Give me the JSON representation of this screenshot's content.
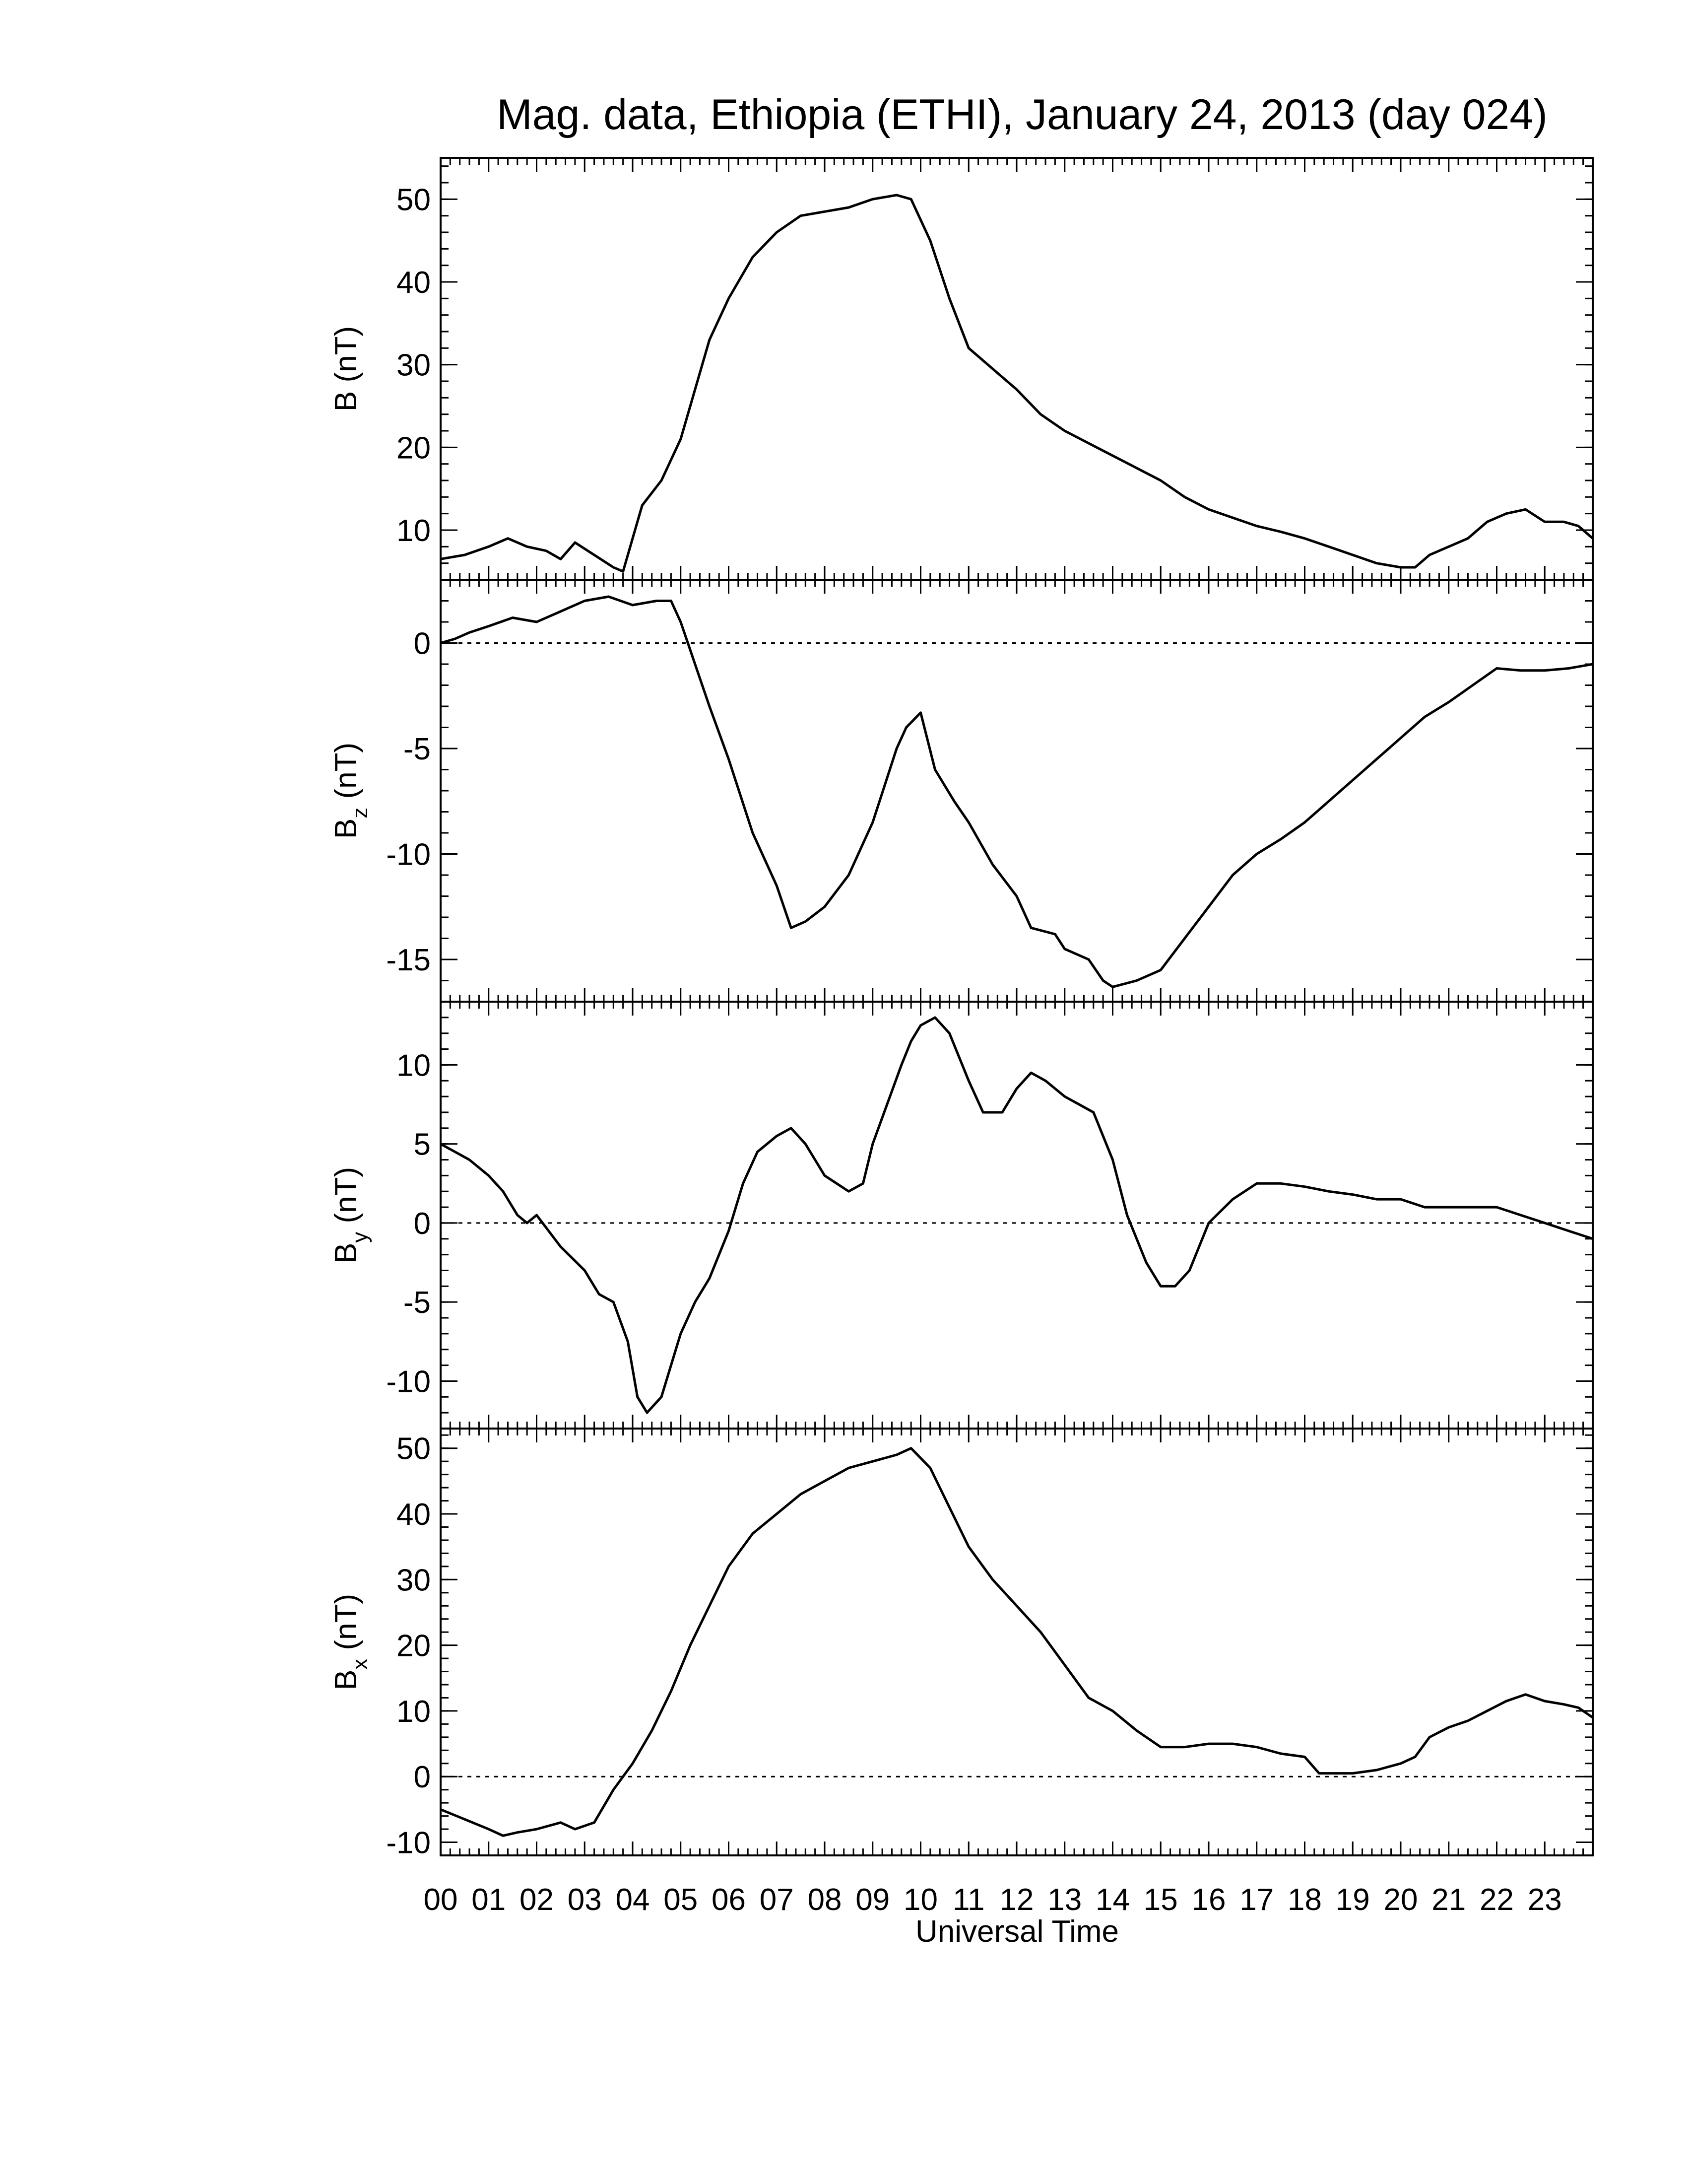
{
  "chart_data": {
    "type": "line",
    "title": "Mag. data, Ethiopia (ETHI), January 24, 2013 (day 024)",
    "xlabel": "Universal Time",
    "x_tick_labels": [
      "00",
      "01",
      "02",
      "03",
      "04",
      "05",
      "06",
      "07",
      "08",
      "09",
      "10",
      "11",
      "12",
      "13",
      "14",
      "15",
      "16",
      "17",
      "18",
      "19",
      "20",
      "21",
      "22",
      "23"
    ],
    "xlim": [
      0,
      24
    ],
    "line_color": "#000000",
    "panels": [
      {
        "id": "B",
        "ylabel_main": "B (nT)",
        "ylabel_sub": "",
        "ylabel_tail": "",
        "ylim": [
          4,
          55
        ],
        "yticks": [
          10,
          20,
          30,
          40,
          50
        ],
        "zero_line": false,
        "x": [
          0,
          0.5,
          1.0,
          1.4,
          1.8,
          2.2,
          2.5,
          2.8,
          3.2,
          3.6,
          3.8,
          4.2,
          4.6,
          5.0,
          5.3,
          5.6,
          6.0,
          6.5,
          7.0,
          7.5,
          8.0,
          8.5,
          9.0,
          9.5,
          9.8,
          10.2,
          10.6,
          11.0,
          11.5,
          12.0,
          12.5,
          13.0,
          13.5,
          14.0,
          14.5,
          15.0,
          15.5,
          16.0,
          16.5,
          17.0,
          17.5,
          18.0,
          18.5,
          19.0,
          19.5,
          20.0,
          20.3,
          20.6,
          21.0,
          21.4,
          21.8,
          22.2,
          22.6,
          23.0,
          23.4,
          23.7,
          24.0
        ],
        "y": [
          6.5,
          7.0,
          8.0,
          9.0,
          8.0,
          7.5,
          6.5,
          8.5,
          7.0,
          5.5,
          5.0,
          13.0,
          16.0,
          21.0,
          27.0,
          33.0,
          38.0,
          43.0,
          46.0,
          48.0,
          48.5,
          49.0,
          50.0,
          50.5,
          50.0,
          45.0,
          38.0,
          32.0,
          29.5,
          27.0,
          24.0,
          22.0,
          20.5,
          19.0,
          17.5,
          16.0,
          14.0,
          12.5,
          11.5,
          10.5,
          9.8,
          9.0,
          8.0,
          7.0,
          6.0,
          5.5,
          5.5,
          7.0,
          8.0,
          9.0,
          11.0,
          12.0,
          12.5,
          11.0,
          11.0,
          10.5,
          9.0
        ]
      },
      {
        "id": "Bz",
        "ylabel_main": "B",
        "ylabel_sub": "z",
        "ylabel_tail": " (nT)",
        "ylim": [
          -17,
          3
        ],
        "yticks": [
          -15,
          -10,
          -5,
          0
        ],
        "zero_line": true,
        "x": [
          0,
          0.3,
          0.6,
          1.0,
          1.5,
          2.0,
          2.5,
          3.0,
          3.5,
          4.0,
          4.5,
          4.8,
          5.0,
          5.3,
          5.6,
          6.0,
          6.5,
          7.0,
          7.3,
          7.6,
          8.0,
          8.5,
          9.0,
          9.5,
          9.7,
          10.0,
          10.3,
          10.7,
          11.0,
          11.5,
          12.0,
          12.3,
          12.8,
          13.0,
          13.5,
          13.8,
          14.0,
          14.5,
          15.0,
          15.5,
          16.0,
          16.5,
          17.0,
          17.5,
          18.0,
          18.5,
          19.0,
          19.5,
          20.0,
          20.5,
          21.0,
          21.5,
          22.0,
          22.5,
          23.0,
          23.5,
          24.0
        ],
        "y": [
          0.0,
          0.2,
          0.5,
          0.8,
          1.2,
          1.0,
          1.5,
          2.0,
          2.2,
          1.8,
          2.0,
          2.0,
          1.0,
          -1.0,
          -3.0,
          -5.5,
          -9.0,
          -11.5,
          -13.5,
          -13.2,
          -12.5,
          -11.0,
          -8.5,
          -5.0,
          -4.0,
          -3.3,
          -6.0,
          -7.5,
          -8.5,
          -10.5,
          -12.0,
          -13.5,
          -13.8,
          -14.5,
          -15.0,
          -16.0,
          -16.3,
          -16.0,
          -15.5,
          -14.0,
          -12.5,
          -11.0,
          -10.0,
          -9.3,
          -8.5,
          -7.5,
          -6.5,
          -5.5,
          -4.5,
          -3.5,
          -2.8,
          -2.0,
          -1.2,
          -1.3,
          -1.3,
          -1.2,
          -1.0
        ]
      },
      {
        "id": "By",
        "ylabel_main": "B",
        "ylabel_sub": "y",
        "ylabel_tail": " (nT)",
        "ylim": [
          -13,
          14
        ],
        "yticks": [
          -10,
          -5,
          0,
          5,
          10
        ],
        "zero_line": true,
        "x": [
          0,
          0.3,
          0.6,
          1.0,
          1.3,
          1.6,
          1.8,
          2.0,
          2.5,
          3.0,
          3.3,
          3.6,
          3.9,
          4.1,
          4.3,
          4.6,
          5.0,
          5.3,
          5.6,
          6.0,
          6.3,
          6.6,
          7.0,
          7.3,
          7.6,
          8.0,
          8.5,
          8.8,
          9.0,
          9.3,
          9.6,
          9.8,
          10.0,
          10.3,
          10.6,
          11.0,
          11.3,
          11.7,
          12.0,
          12.3,
          12.6,
          13.0,
          13.3,
          13.6,
          14.0,
          14.3,
          14.7,
          15.0,
          15.3,
          15.6,
          16.0,
          16.5,
          17.0,
          17.5,
          18.0,
          18.5,
          19.0,
          19.5,
          20.0,
          20.5,
          21.0,
          21.5,
          22.0,
          22.5,
          23.0,
          23.5,
          24.0
        ],
        "y": [
          5.0,
          4.5,
          4.0,
          3.0,
          2.0,
          0.5,
          0.0,
          0.5,
          -1.5,
          -3.0,
          -4.5,
          -5.0,
          -7.5,
          -11.0,
          -12.0,
          -11.0,
          -7.0,
          -5.0,
          -3.5,
          -0.5,
          2.5,
          4.5,
          5.5,
          6.0,
          5.0,
          3.0,
          2.0,
          2.5,
          5.0,
          7.5,
          10.0,
          11.5,
          12.5,
          13.0,
          12.0,
          9.0,
          7.0,
          7.0,
          8.5,
          9.5,
          9.0,
          8.0,
          7.5,
          7.0,
          4.0,
          0.5,
          -2.5,
          -4.0,
          -4.0,
          -3.0,
          0.0,
          1.5,
          2.5,
          2.5,
          2.3,
          2.0,
          1.8,
          1.5,
          1.5,
          1.0,
          1.0,
          1.0,
          1.0,
          0.5,
          0.0,
          -0.5,
          -1.0
        ]
      },
      {
        "id": "Bx",
        "ylabel_main": "B",
        "ylabel_sub": "x",
        "ylabel_tail": " (nT)",
        "ylim": [
          -12,
          53
        ],
        "yticks": [
          -10,
          0,
          10,
          20,
          30,
          40,
          50
        ],
        "zero_line": true,
        "x": [
          0,
          0.5,
          1.0,
          1.3,
          1.6,
          2.0,
          2.5,
          2.8,
          3.2,
          3.6,
          4.0,
          4.4,
          4.8,
          5.2,
          5.6,
          6.0,
          6.5,
          7.0,
          7.5,
          8.0,
          8.5,
          9.0,
          9.5,
          9.8,
          10.2,
          10.6,
          11.0,
          11.5,
          12.0,
          12.5,
          13.0,
          13.5,
          14.0,
          14.5,
          15.0,
          15.5,
          16.0,
          16.5,
          17.0,
          17.5,
          18.0,
          18.3,
          18.6,
          19.0,
          19.5,
          20.0,
          20.3,
          20.6,
          21.0,
          21.4,
          21.8,
          22.2,
          22.6,
          23.0,
          23.4,
          23.7,
          24.0
        ],
        "y": [
          -5.0,
          -6.5,
          -8.0,
          -9.0,
          -8.5,
          -8.0,
          -7.0,
          -8.0,
          -7.0,
          -2.0,
          2.0,
          7.0,
          13.0,
          20.0,
          26.0,
          32.0,
          37.0,
          40.0,
          43.0,
          45.0,
          47.0,
          48.0,
          49.0,
          50.0,
          47.0,
          41.0,
          35.0,
          30.0,
          26.0,
          22.0,
          17.0,
          12.0,
          10.0,
          7.0,
          4.5,
          4.5,
          5.0,
          5.0,
          4.5,
          3.5,
          3.0,
          0.5,
          0.5,
          0.5,
          1.0,
          2.0,
          3.0,
          6.0,
          7.5,
          8.5,
          10.0,
          11.5,
          12.5,
          11.5,
          11.0,
          10.5,
          9.0
        ]
      }
    ]
  }
}
